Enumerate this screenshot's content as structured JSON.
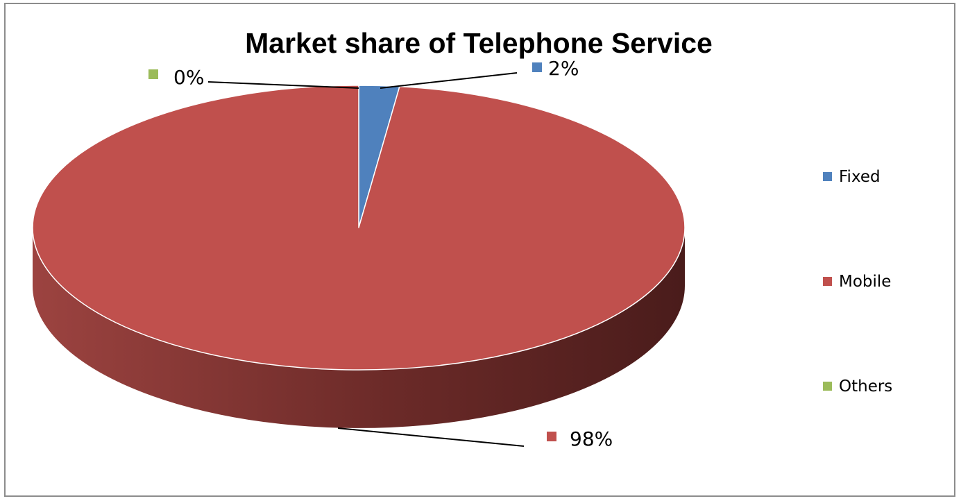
{
  "chart_data": {
    "type": "pie",
    "title": "Market share of Telephone Service",
    "categories": [
      "Fixed",
      "Mobile",
      "Others"
    ],
    "values": [
      2,
      98,
      0
    ],
    "data_labels": [
      "2%",
      "98%",
      "0%"
    ],
    "three_d": true,
    "legend_position": "right",
    "colors": [
      "#4f81bd",
      "#c0504d",
      "#9bbb59"
    ]
  }
}
